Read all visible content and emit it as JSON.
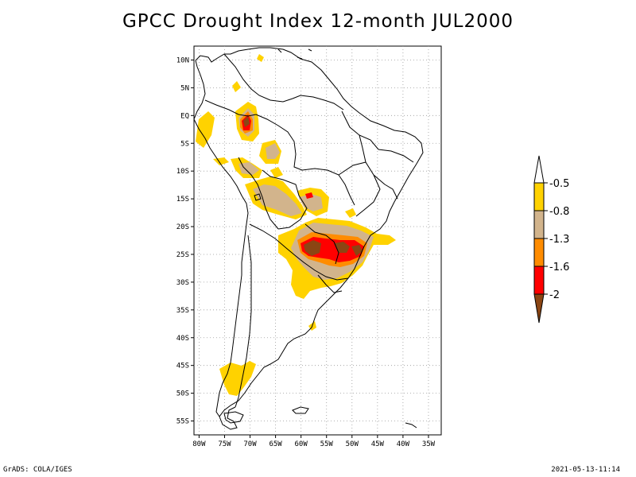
{
  "title": "GPCC Drought Index 12-month JUL2000",
  "footer": {
    "left": "GrADS: COLA/IGES",
    "right": "2021-05-13-11:14"
  },
  "lat_labels": [
    "10N",
    "5N",
    "EQ",
    "5S",
    "10S",
    "15S",
    "20S",
    "25S",
    "30S",
    "35S",
    "40S",
    "45S",
    "50S",
    "55S"
  ],
  "lon_labels": [
    "80W",
    "75W",
    "70W",
    "65W",
    "60W",
    "55W",
    "50W",
    "45W",
    "40W",
    "35W"
  ],
  "colors": {
    "gt_-0.5": "#ffffff",
    "-0.5_-0.8": "#ffd200",
    "-0.8_-1.3": "#d2b48c",
    "-1.3_-1.6": "#ff8c00",
    "-1.6_-2": "#ff0000",
    "lt_-2": "#8b4513",
    "coast": "#000000",
    "grid": "#9a9a9a"
  },
  "legend": {
    "labels": [
      "-0.5",
      "-0.8",
      "-1.3",
      "-1.6",
      "-2"
    ]
  }
}
